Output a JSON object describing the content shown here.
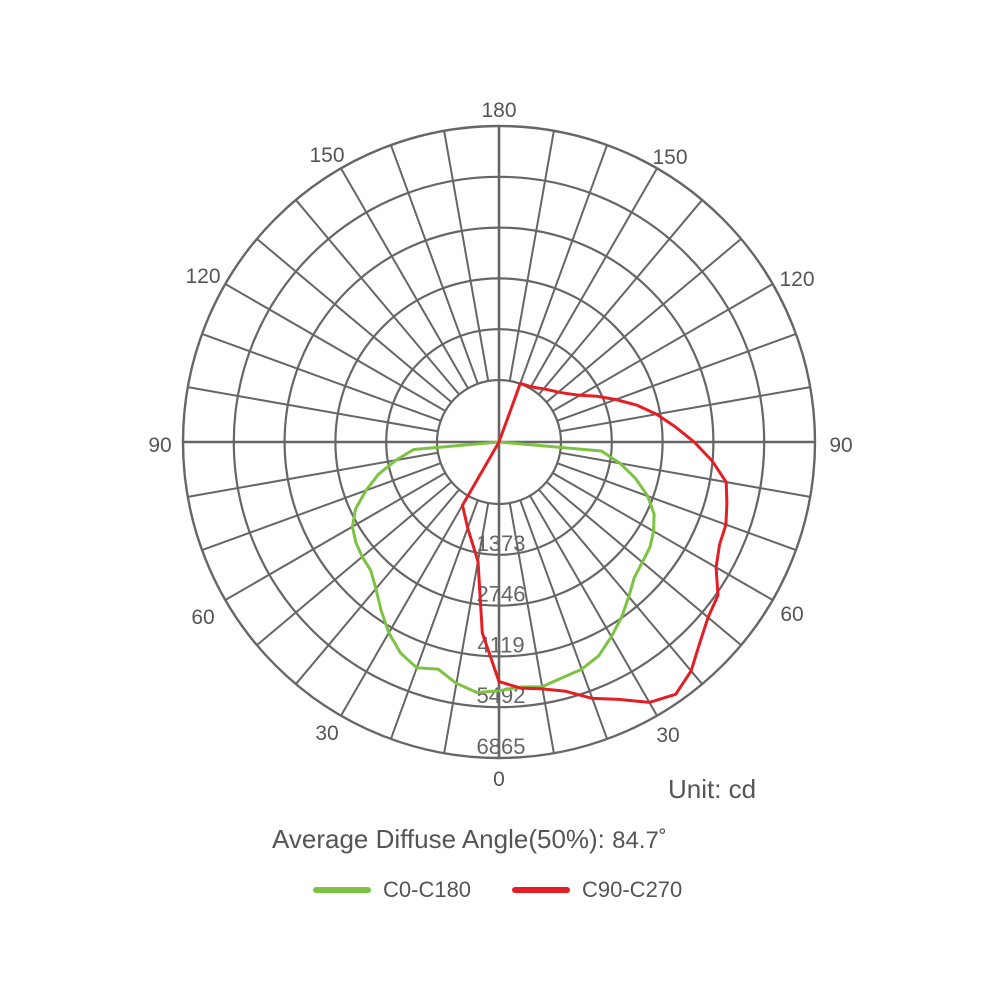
{
  "chart_data": {
    "type": "polar",
    "units": "Unit: cd",
    "rmax": 6865,
    "ring_ticks": [
      1373,
      2746,
      4119,
      5492,
      6865
    ],
    "angle_labels": {
      "top": "180",
      "upper_left": "150",
      "upper_right": "150",
      "mid_upper_left": "120",
      "mid_upper_right": "120",
      "left": "90",
      "right": "90",
      "lower_left": "60",
      "lower_right": "60",
      "bottom_left": "30",
      "bottom_right": "30",
      "bottom": "0"
    },
    "series": [
      {
        "name": "C0-C180",
        "color": "#7dc242",
        "angles_deg": [
          -90,
          -85,
          -80,
          -75,
          -70,
          -65,
          -60,
          -55,
          -50,
          -45,
          -40,
          -35,
          -30,
          -25,
          -20,
          -15,
          -10,
          -5,
          0,
          5,
          10,
          15,
          20,
          25,
          30,
          35,
          40,
          45,
          50,
          55,
          60,
          65,
          70,
          75,
          80,
          85,
          90
        ],
        "values_cd": [
          0,
          640,
          1150,
          1700,
          2150,
          2600,
          2900,
          3050,
          3150,
          3230,
          3500,
          3880,
          4280,
          4620,
          4820,
          4680,
          4950,
          5120,
          5050,
          4970,
          5040,
          4920,
          4860,
          4700,
          4400,
          4100,
          3780,
          3500,
          3380,
          3300,
          3150,
          2950,
          2600,
          2150,
          1650,
          1100,
          0
        ]
      },
      {
        "name": "C90-C270",
        "color": "#e31e24",
        "angles_deg": [
          -90,
          -80,
          -70,
          -60,
          -50,
          -40,
          -30,
          -20,
          -10,
          -5,
          0,
          5,
          10,
          15,
          20,
          25,
          30,
          35,
          40,
          45,
          50,
          55,
          60,
          65,
          70,
          75,
          80,
          85,
          90,
          95,
          100,
          105,
          110,
          115,
          120,
          125,
          130,
          135,
          140,
          145,
          150,
          160,
          170
        ],
        "values_cd": [
          0,
          0,
          0,
          0,
          0,
          0,
          300,
          800,
          1600,
          3500,
          4800,
          5000,
          5100,
          5300,
          5700,
          6000,
          6450,
          6650,
          6400,
          6000,
          5700,
          5550,
          5100,
          4900,
          4850,
          4700,
          4560,
          4100,
          3600,
          3100,
          2650,
          2180,
          1680,
          1250,
          850,
          600,
          420,
          300,
          200,
          110,
          50,
          10,
          0
        ]
      }
    ]
  },
  "footer": {
    "summary_label": "Average Diffuse Angle(50%):",
    "summary_value": "84.7˚"
  }
}
